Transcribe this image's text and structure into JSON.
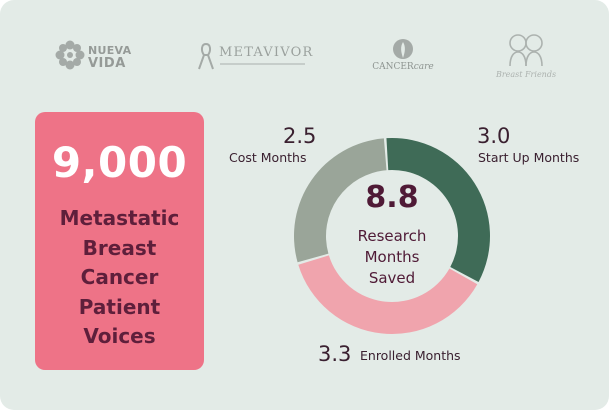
{
  "logos": {
    "nuevavida": {
      "line1": "NUEVA",
      "line2": "VIDA"
    },
    "metavivor": {
      "name": "METAVIVOR"
    },
    "cancercare": {
      "name_a": "CANCER",
      "name_b": "care"
    },
    "breast_friends": {
      "name": "Breast Friends"
    }
  },
  "stat": {
    "number": "9,000",
    "label_lines": [
      "Metastatic",
      "Breast",
      "Cancer",
      "Patient",
      "Voices"
    ],
    "panel_color": "#ee7387",
    "label_color": "#5e1f3b"
  },
  "chart_data": {
    "type": "pie",
    "style": "donut",
    "total_value": "8.8",
    "total_label_lines": [
      "Research",
      "Months",
      "Saved"
    ],
    "segments": [
      {
        "name": "Start Up Months",
        "value": 3.0,
        "value_text": "3.0",
        "color": "#3f6b57"
      },
      {
        "name": "Enrolled Months",
        "value": 3.3,
        "value_text": "3.3",
        "color": "#f0a4ad"
      },
      {
        "name": "Cost Months",
        "value": 2.5,
        "value_text": "2.5",
        "color": "#9aa599"
      }
    ]
  }
}
